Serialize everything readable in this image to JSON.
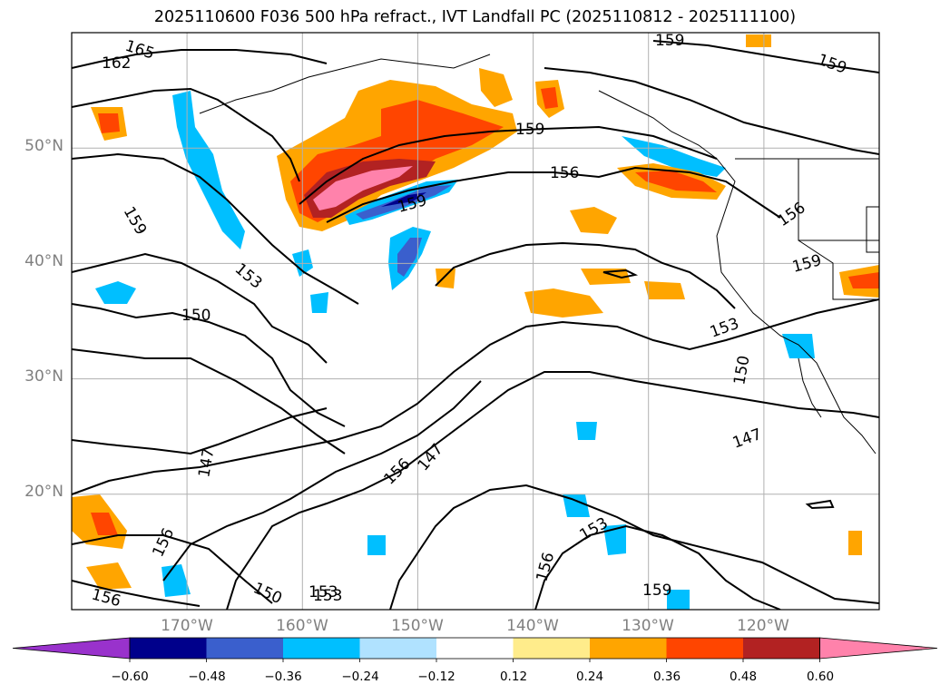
{
  "title": "2025110600 F036 500 hPa refract., IVT Landfall PC (2025110812 - 2025111100)",
  "latitude_labels": [
    "50°N",
    "40°N",
    "30°N",
    "20°N"
  ],
  "longitude_labels": [
    "170°W",
    "160°W",
    "150°W",
    "140°W",
    "130°W",
    "120°W"
  ],
  "contour_labels": [
    "165",
    "162",
    "159",
    "159",
    "159",
    "159",
    "159",
    "159",
    "156",
    "156",
    "156",
    "156",
    "156",
    "153",
    "153",
    "153",
    "153",
    "150",
    "150",
    "150",
    "147",
    "147",
    "147",
    "159",
    "153",
    "156"
  ],
  "colorbar": {
    "ticks": [
      "−0.60",
      "−0.48",
      "−0.36",
      "−0.24",
      "−0.12",
      "0.12",
      "0.24",
      "0.36",
      "0.48",
      "0.60"
    ],
    "colors": [
      "#9932cc",
      "#00008b",
      "#3a5fcd",
      "#00bfff",
      "#b0e2ff",
      "#ffffff",
      "#ffec8b",
      "#ffa500",
      "#ff4500",
      "#b22222",
      "#ff82ab"
    ]
  },
  "chart_data": {
    "type": "map",
    "title": "2025110600 F036 500 hPa refract., IVT Landfall PC (2025110812 - 2025111100)",
    "lon_range": [
      -180,
      -110
    ],
    "lat_range": [
      10,
      60
    ],
    "contour_levels": [
      147,
      150,
      153,
      156,
      159,
      162,
      165
    ],
    "shading_levels": [
      -0.6,
      -0.48,
      -0.36,
      -0.24,
      -0.12,
      0.12,
      0.24,
      0.36,
      0.48,
      0.6
    ],
    "grid": true
  }
}
